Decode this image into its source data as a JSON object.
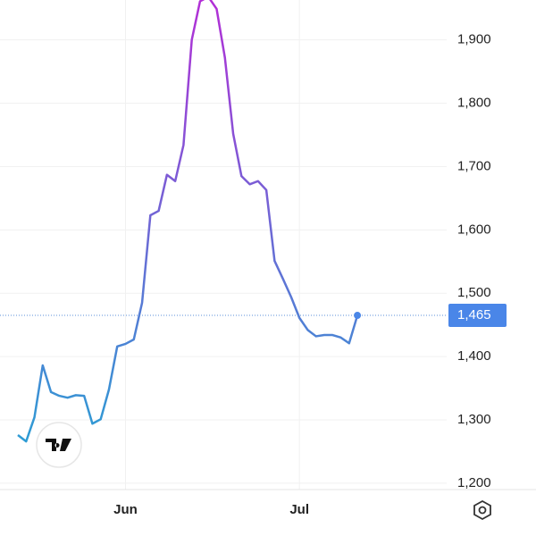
{
  "chart_data": {
    "type": "line",
    "categories": [
      null,
      null,
      null,
      null,
      null,
      null,
      null,
      null,
      null,
      null,
      null,
      null,
      null,
      "Jun",
      null,
      null,
      null,
      null,
      null,
      null,
      null,
      null,
      null,
      null,
      null,
      null,
      null,
      null,
      null,
      null,
      null,
      null,
      null,
      null,
      "Jul",
      null,
      null,
      null,
      null,
      null,
      null,
      null
    ],
    "series": [
      {
        "gradient": [
          "#b22fd6",
          "#1fa8d4"
        ],
        "values": [
          1276,
          1266,
          1304,
          1386,
          1344,
          1338,
          1335,
          1339,
          1338,
          1294,
          1301,
          1348,
          1416,
          1420,
          1427,
          1485,
          1623,
          1630,
          1687,
          1677,
          1734,
          1900,
          1961,
          1968,
          1949,
          1872,
          1752,
          1685,
          1672,
          1677,
          1663,
          1551,
          1523,
          1494,
          1461,
          1442,
          1432,
          1434,
          1434,
          1430,
          1421,
          1465
        ]
      }
    ],
    "last_value": {
      "value": 1465,
      "label": "1,465"
    },
    "ylim": [
      1190,
      1963
    ],
    "yticks": [
      {
        "value": 1200,
        "label": "1,200"
      },
      {
        "value": 1300,
        "label": "1,300"
      },
      {
        "value": 1400,
        "label": "1,400"
      },
      {
        "value": 1500,
        "label": "1,500"
      },
      {
        "value": 1600,
        "label": "1,600"
      },
      {
        "value": 1700,
        "label": "1,700"
      },
      {
        "value": 1800,
        "label": "1,800"
      },
      {
        "value": 1900,
        "label": "1,900"
      }
    ],
    "grid": true
  }
}
